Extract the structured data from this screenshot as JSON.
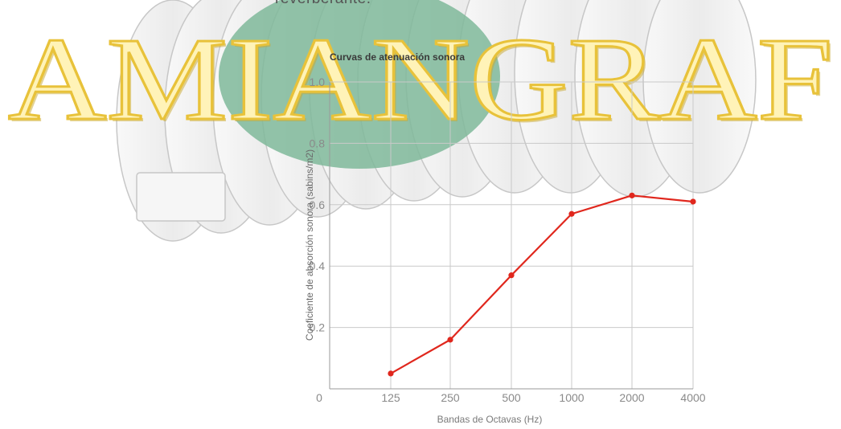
{
  "page": {
    "top_text": "reverberante.",
    "watermark_text": "AMIANGRAF",
    "colors": {
      "watermark_fill": "#fff3b8",
      "watermark_stroke": "#e8c23a",
      "watermark_shadow": "#c9a830",
      "seal_green": "#7fb89a",
      "series": "#e0271d",
      "grid": "#c9c9c9",
      "tick": "#8a8a8a"
    }
  },
  "chart_data": {
    "type": "line",
    "title": "Curvas de atenuación sonora",
    "xlabel": "Bandas de Octavas (Hz)",
    "ylabel": "Coeficiente de absorción sonora (sabins/m2)",
    "categories": [
      "125",
      "250",
      "500",
      "1000",
      "2000",
      "4000"
    ],
    "x_origin_label": "0",
    "ytick_labels": [
      "0.2",
      "0.4",
      "0.6",
      "0.8",
      "1.0"
    ],
    "yticks": [
      0.2,
      0.4,
      0.6,
      0.8,
      1.0
    ],
    "ylim": [
      0,
      1.0
    ],
    "grid": true,
    "legend": "none",
    "series": [
      {
        "values": [
          0.05,
          0.16,
          0.37,
          0.57,
          0.63,
          0.61
        ]
      }
    ]
  }
}
